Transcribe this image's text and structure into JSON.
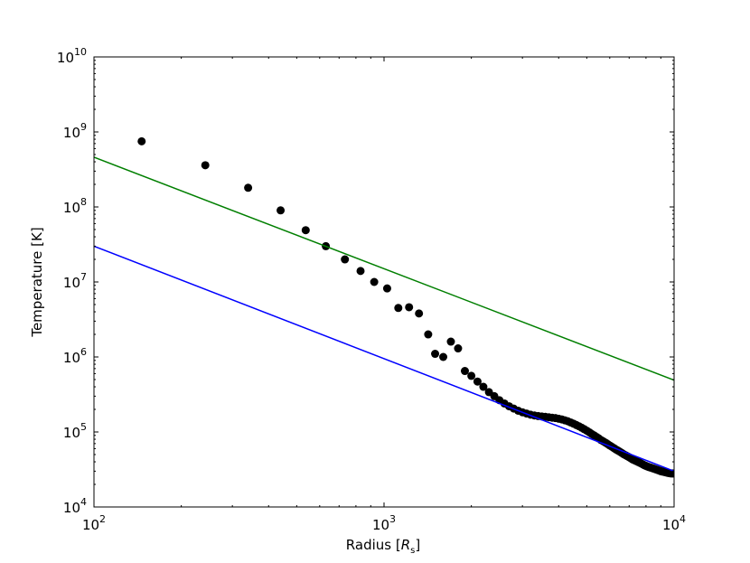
{
  "chart_data": {
    "type": "scatter",
    "title": "",
    "xlabel_prefix": "Radius [",
    "xlabel_var": "R",
    "xlabel_sub": "s",
    "xlabel_suffix": "]",
    "ylabel": "Temperature [K]",
    "xscale": "log",
    "yscale": "log",
    "xlim": [
      100,
      10000
    ],
    "ylim": [
      10000,
      10000000000
    ],
    "grid": false,
    "x_ticks": [
      {
        "value": 100,
        "base": "10",
        "exp": "2"
      },
      {
        "value": 1000,
        "base": "10",
        "exp": "3"
      },
      {
        "value": 10000,
        "base": "10",
        "exp": "4"
      }
    ],
    "y_ticks": [
      {
        "value": 10000,
        "base": "10",
        "exp": "4"
      },
      {
        "value": 100000,
        "base": "10",
        "exp": "5"
      },
      {
        "value": 1000000,
        "base": "10",
        "exp": "6"
      },
      {
        "value": 10000000,
        "base": "10",
        "exp": "7"
      },
      {
        "value": 100000000,
        "base": "10",
        "exp": "8"
      },
      {
        "value": 1000000000,
        "base": "10",
        "exp": "9"
      },
      {
        "value": 10000000000,
        "base": "10",
        "exp": "10"
      }
    ],
    "series": [
      {
        "kind": "scatter",
        "color": "#000000",
        "x": [
          146,
          242,
          340,
          440,
          537,
          630,
          733,
          830,
          925,
          1025,
          1120,
          1220,
          1320,
          1420,
          1500,
          1600,
          1700,
          1800,
          1900,
          2000,
          2100,
          2200,
          2300,
          2400,
          2500,
          2600,
          2700,
          2800,
          2900,
          3000,
          3100,
          3200,
          3300,
          3400,
          3500,
          3600,
          3700,
          3800,
          3900,
          4000,
          4100,
          4200,
          4300,
          4400,
          4500,
          4600,
          4700,
          4800,
          4900,
          5000,
          5100,
          5200,
          5300,
          5400,
          5500,
          5600,
          5700,
          5800,
          5900,
          6000,
          6100,
          6200,
          6300,
          6400,
          6500,
          6600,
          6700,
          6800,
          6900,
          7000,
          7100,
          7200,
          7300,
          7400,
          7500,
          7600,
          7700,
          7800,
          7900,
          8000,
          8100,
          8200,
          8300,
          8400,
          8500,
          8600,
          8700,
          8800,
          8900,
          9000,
          9100,
          9200,
          9300,
          9400,
          9500,
          9600,
          9700,
          9800,
          9900,
          10000
        ],
        "y": [
          750000000,
          360000000,
          180000000,
          90000000,
          49000000,
          30000000,
          20000000,
          14000000,
          10000000,
          8200000,
          4500000,
          4600000,
          3800000,
          2000000,
          1100000,
          1000000,
          1600000,
          1300000,
          650000,
          560000,
          470000,
          400000,
          340000,
          300000,
          265000,
          240000,
          220000,
          205000,
          192000,
          183000,
          176000,
          170000,
          166000,
          163000,
          161000,
          159000,
          157000,
          155000,
          153000,
          150000,
          147000,
          143000,
          139000,
          134000,
          129000,
          124000,
          119000,
          114000,
          109000,
          104000,
          99000,
          94000,
          90000,
          86000,
          82000,
          78000,
          75000,
          72000,
          69000,
          66000,
          63500,
          61000,
          58500,
          56500,
          54500,
          52500,
          50500,
          49000,
          47500,
          46000,
          44500,
          43000,
          42000,
          41000,
          40000,
          39000,
          38000,
          37000,
          36000,
          35300,
          34600,
          34000,
          33500,
          33000,
          32500,
          32000,
          31500,
          31000,
          30500,
          30000,
          29700,
          29400,
          29100,
          28800,
          28500,
          28300,
          28100,
          28000,
          28000,
          28000
        ]
      },
      {
        "kind": "line",
        "color": "#007f00",
        "x": [
          100,
          10000
        ],
        "y": [
          460000000,
          490000
        ]
      },
      {
        "kind": "line",
        "color": "#0000ff",
        "x": [
          100,
          10000
        ],
        "y": [
          30000000,
          30000
        ]
      }
    ]
  }
}
